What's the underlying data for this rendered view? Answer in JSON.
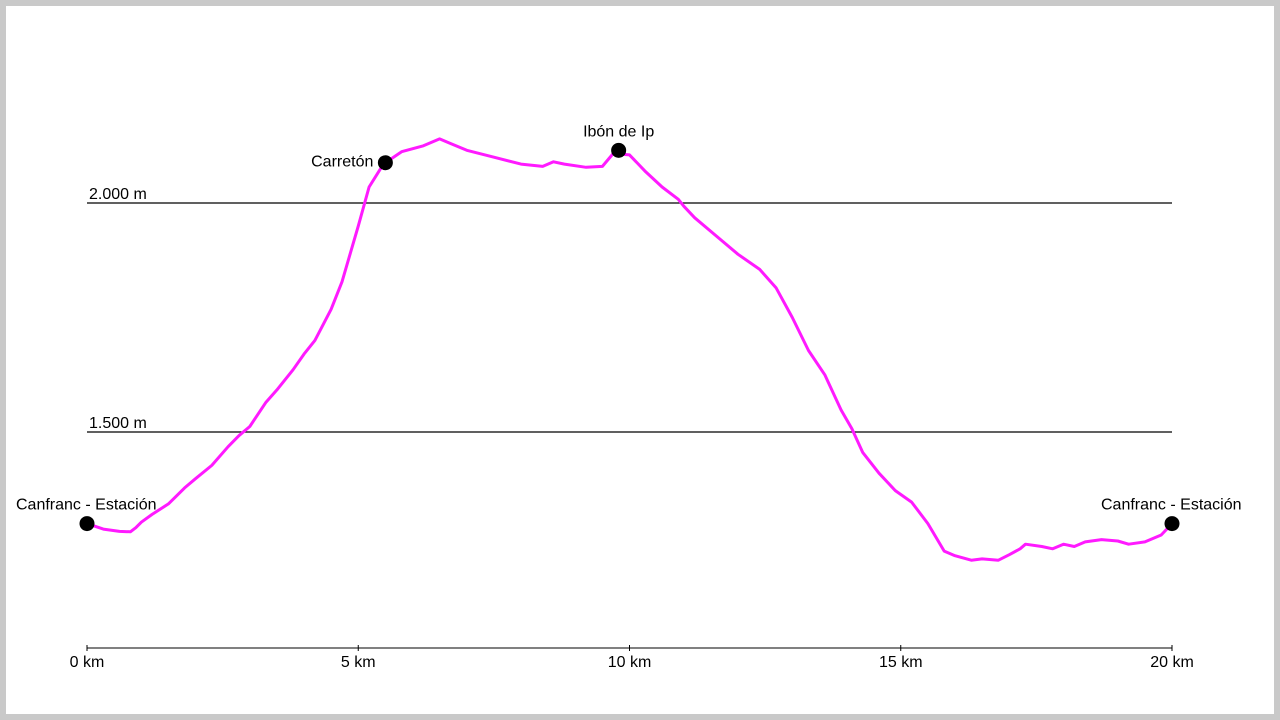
{
  "chart_data": {
    "type": "line",
    "title": "",
    "xlabel": "",
    "ylabel": "",
    "x_unit": "km",
    "xlim": [
      0,
      20
    ],
    "ylim": [
      1000,
      2300
    ],
    "x_ticks": [
      {
        "value": 0,
        "label": "0 km"
      },
      {
        "value": 5,
        "label": "5 km"
      },
      {
        "value": 10,
        "label": "10 km"
      },
      {
        "value": 15,
        "label": "15 km"
      },
      {
        "value": 20,
        "label": "20 km"
      }
    ],
    "reference_lines": [
      {
        "value": 2000,
        "label": "2.000 m"
      },
      {
        "value": 1500,
        "label": "1.500 m"
      }
    ],
    "line_color": "#ff1aff",
    "series": [
      {
        "x": [
          0,
          0.3,
          0.6,
          0.8,
          0.9,
          1.0,
          1.2,
          1.5,
          1.8,
          2.0,
          2.3,
          2.6,
          2.8,
          3.0,
          3.3,
          3.5,
          3.8,
          4.0,
          4.2,
          4.5,
          4.7,
          5.0,
          5.2,
          5.4,
          5.5,
          5.8,
          6.2,
          6.5,
          6.7,
          7.0,
          7.5,
          8.0,
          8.4,
          8.6,
          8.8,
          9.2,
          9.5,
          9.7,
          10.0,
          10.3,
          10.6,
          10.9,
          11.0,
          11.2,
          11.6,
          12.0,
          12.4,
          12.7,
          13.0,
          13.3,
          13.6,
          13.9,
          14.1,
          14.3,
          14.6,
          14.9,
          15.2,
          15.5,
          15.8,
          16.0,
          16.3,
          16.5,
          16.8,
          17.0,
          17.2,
          17.3,
          17.6,
          17.8,
          18.0,
          18.2,
          18.4,
          18.7,
          19.0,
          19.2,
          19.5,
          19.8,
          20.0
        ],
        "y": [
          1300,
          1288,
          1283,
          1282,
          1291,
          1303,
          1320,
          1343,
          1378,
          1398,
          1427,
          1468,
          1492,
          1512,
          1565,
          1592,
          1636,
          1670,
          1700,
          1768,
          1828,
          1950,
          2035,
          2073,
          2088,
          2112,
          2125,
          2140,
          2130,
          2115,
          2100,
          2085,
          2080,
          2090,
          2085,
          2078,
          2080,
          2108,
          2105,
          2068,
          2035,
          2008,
          1993,
          1968,
          1928,
          1888,
          1855,
          1815,
          1750,
          1678,
          1625,
          1548,
          1507,
          1455,
          1410,
          1372,
          1347,
          1300,
          1240,
          1230,
          1220,
          1223,
          1220,
          1232,
          1245,
          1255,
          1250,
          1245,
          1255,
          1250,
          1260,
          1265,
          1262,
          1255,
          1260,
          1275,
          1300
        ]
      }
    ],
    "waypoints": [
      {
        "x": 0,
        "y": 1300,
        "label": "Canfranc - Estación"
      },
      {
        "x": 5.5,
        "y": 2088,
        "label": "Carretón"
      },
      {
        "x": 9.8,
        "y": 2115,
        "label": "Ibón de Ip"
      },
      {
        "x": 20,
        "y": 1300,
        "label": "Canfranc - Estación"
      }
    ]
  }
}
